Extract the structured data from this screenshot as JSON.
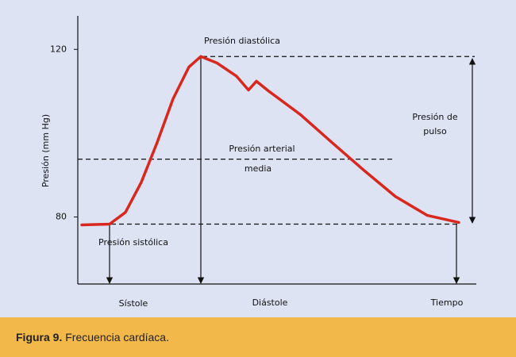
{
  "chart_data": {
    "type": "line",
    "y_label": "Presión (mm Hg)",
    "ylim": [
      64,
      128
    ],
    "yticks": [
      80,
      120
    ],
    "xlim": [
      0,
      100
    ],
    "x_labels": [
      "Sístole",
      "Diástole",
      "Tiempo"
    ],
    "series": [
      {
        "color": "#d8281e",
        "x": [
          1,
          8,
          12,
          16,
          20,
          24,
          28,
          31,
          35,
          40,
          43,
          45,
          48,
          56,
          64,
          72,
          80,
          88,
          96
        ],
        "values": [
          78.1,
          78.3,
          81.1,
          88.3,
          97.8,
          108.2,
          115.8,
          118.3,
          116.8,
          113.6,
          110.3,
          112.4,
          110.1,
          104.5,
          97.8,
          91.2,
          84.9,
          80.4,
          78.7
        ]
      }
    ],
    "reference_lines": [
      {
        "label": "Presión diastólica",
        "value": 118.3
      },
      {
        "label": [
          "Presión arterial",
          "media"
        ],
        "value": 93.8
      },
      {
        "label": "Presión sistólica",
        "value": 78.3
      }
    ],
    "pulse_label": [
      "Presión de",
      "pulso"
    ]
  },
  "caption": {
    "label": "Figura 9.",
    "text": "Frecuencia cardíaca."
  }
}
